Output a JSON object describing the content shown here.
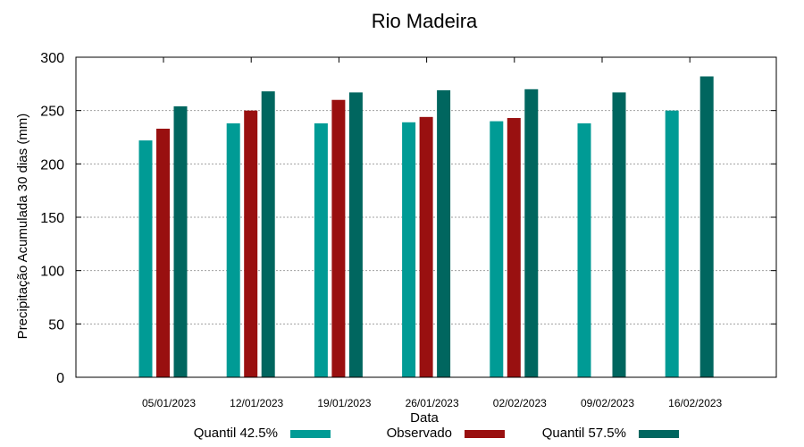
{
  "chart_data": {
    "type": "bar",
    "title": "Rio Madeira",
    "xlabel": "Data",
    "ylabel": "Precipitação Acumulada 30 dias (mm)",
    "ylim": [
      0,
      300
    ],
    "yticks": [
      0,
      50,
      100,
      150,
      200,
      250,
      300
    ],
    "grid": true,
    "legend_position": "bottom",
    "categories": [
      "05/01/2023",
      "12/01/2023",
      "19/01/2023",
      "26/01/2023",
      "02/02/2023",
      "09/02/2023",
      "16/02/2023"
    ],
    "series": [
      {
        "name": "Quantil 42.5%",
        "color": "#009b95",
        "values": [
          222,
          238,
          238,
          239,
          240,
          238,
          250
        ]
      },
      {
        "name": "Observado",
        "color": "#991010",
        "values": [
          233,
          250,
          260,
          244,
          243,
          null,
          null
        ]
      },
      {
        "name": "Quantil 57.5%",
        "color": "#00665f",
        "values": [
          254,
          268,
          267,
          269,
          270,
          267,
          282
        ]
      }
    ]
  }
}
